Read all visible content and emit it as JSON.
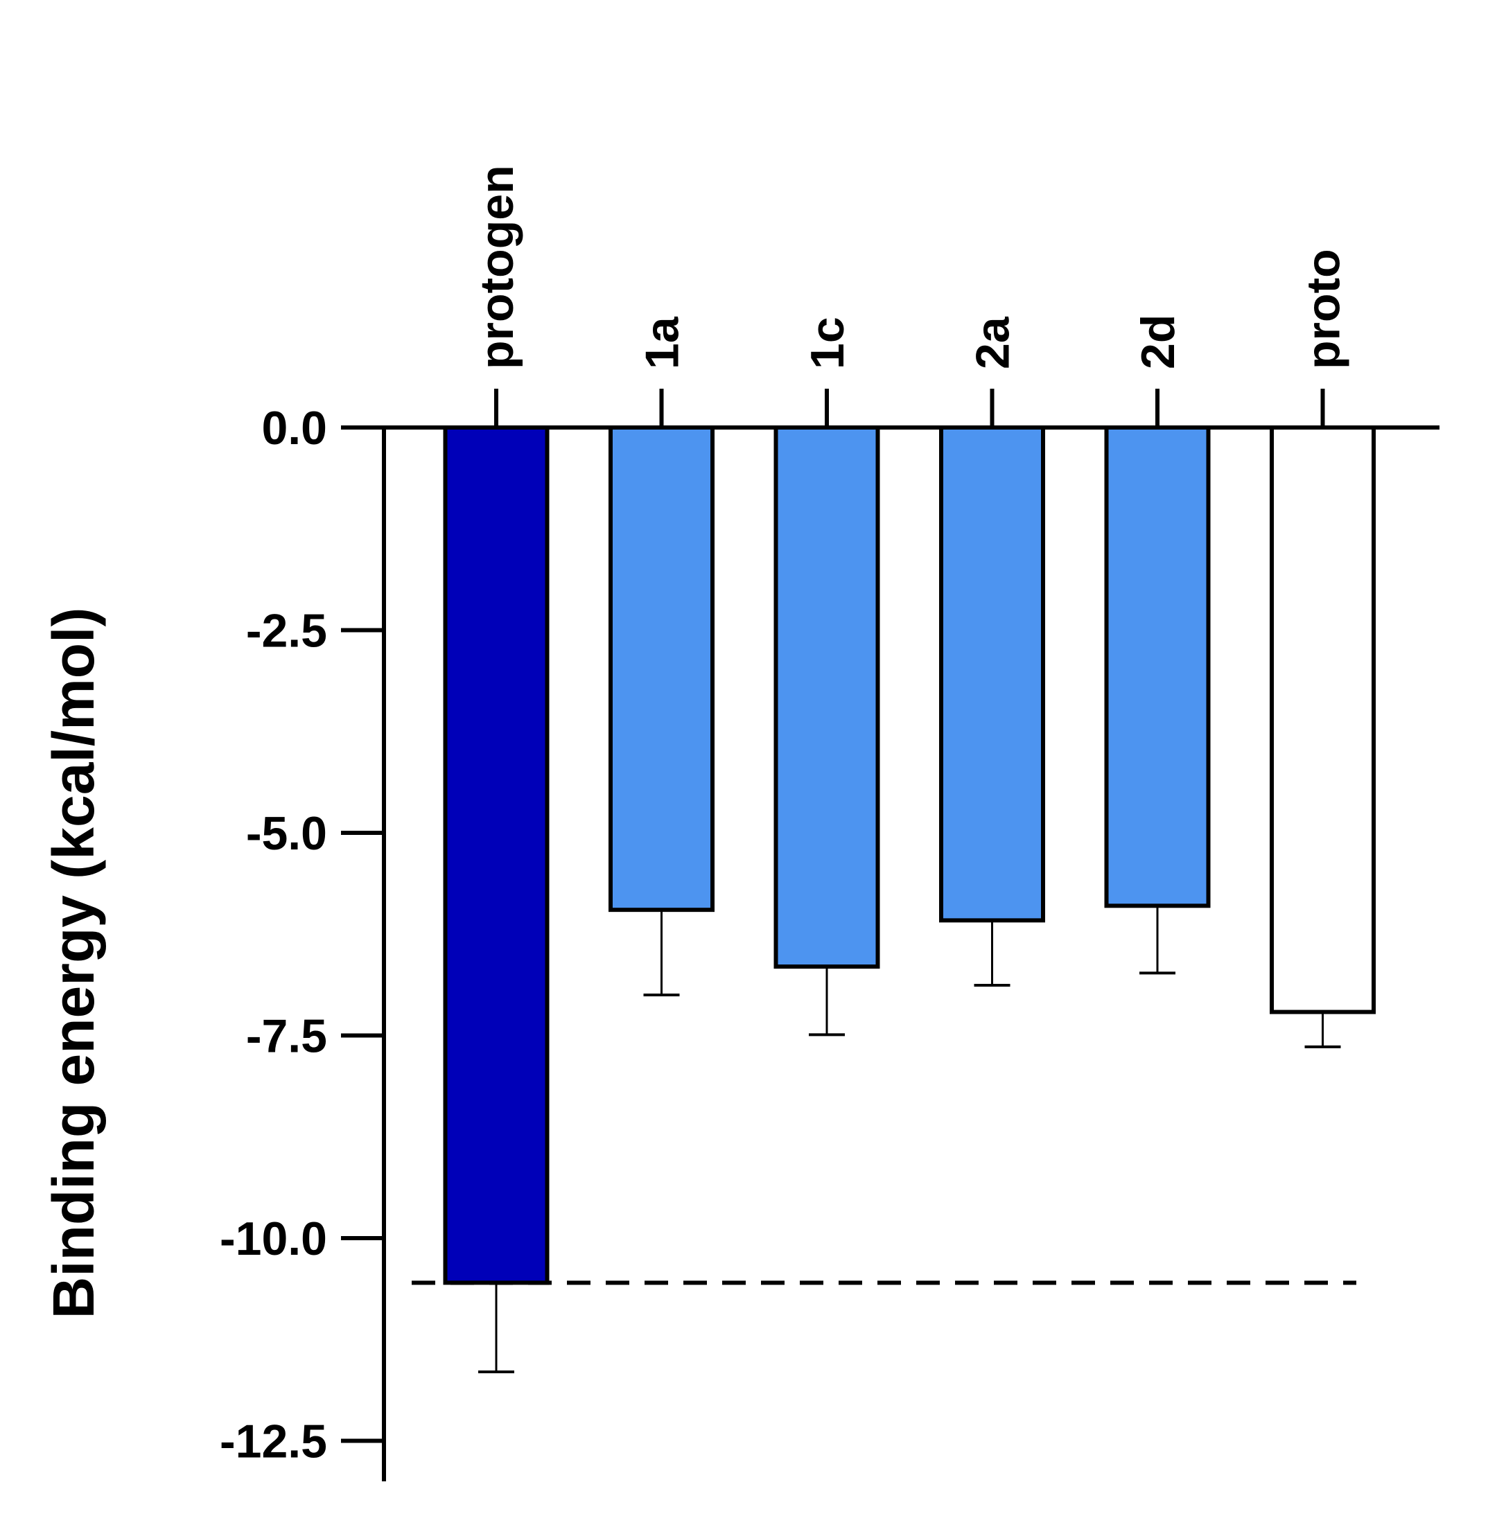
{
  "chart_data": {
    "type": "bar",
    "y_label": "Binding energy (kcal/mol)",
    "categories": [
      "protogen",
      "1a",
      "1c",
      "2a",
      "2d",
      "proto"
    ],
    "values": [
      -10.55,
      -5.95,
      -6.65,
      -6.08,
      -5.9,
      -7.21
    ],
    "errors": [
      1.1,
      1.05,
      0.84,
      0.8,
      0.83,
      0.43
    ],
    "colors": [
      "#0000b8",
      "#4d94f0",
      "#4d94f0",
      "#4d94f0",
      "#4d94f0",
      "#ffffff"
    ],
    "reference_line": -10.55,
    "ylim": [
      -13,
      0
    ],
    "yticks": [
      {
        "value": 0,
        "label": "0.0"
      },
      -2.5,
      {
        "value": -5,
        "label": "-5.0"
      },
      -7.5,
      {
        "value": -10,
        "label": "-10.0"
      },
      -12.5
    ]
  }
}
